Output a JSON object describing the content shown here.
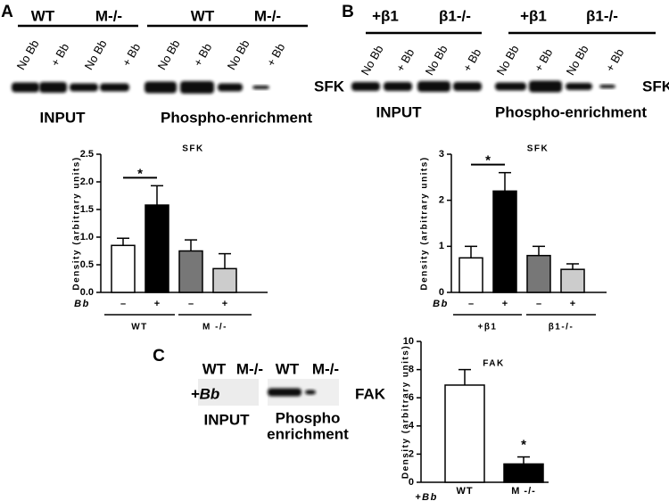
{
  "blots": [
    {
      "panel": "A",
      "headers": [
        "WT",
        "M-/-",
        "WT",
        "M-/-"
      ],
      "lanes": [
        "No Bb",
        "+ Bb",
        "No Bb",
        "+ Bb",
        "No Bb",
        "+ Bb",
        "No Bb",
        "+ Bb"
      ],
      "protein": "SFK",
      "sections": [
        "INPUT",
        "Phospho-enrichment"
      ]
    },
    {
      "panel": "B",
      "headers": [
        "+β1",
        "β1-/-",
        "+β1",
        "β1-/-"
      ],
      "lanes": [
        "No Bb",
        "+ Bb",
        "No Bb",
        "+ Bb",
        "No Bb",
        "+ Bb",
        "No Bb",
        "+ Bb"
      ],
      "protein": "SFK",
      "sections": [
        "INPUT",
        "Phospho-enrichment"
      ]
    },
    {
      "panel": "C",
      "headers": [
        "WT",
        "M-/-",
        "WT",
        "M-/-"
      ],
      "row_label": "+Bb",
      "protein": "FAK",
      "sections": [
        "INPUT",
        "Phospho",
        "enrichment"
      ]
    }
  ],
  "chart_data": [
    {
      "type": "bar",
      "title": "SFK",
      "y_label": "Density (arbitrary units)",
      "factor_label": "Bb",
      "categories": [
        "–",
        "+",
        "–",
        "+"
      ],
      "groups": [
        "WT",
        "M -/-"
      ],
      "values": [
        0.85,
        1.58,
        0.75,
        0.43
      ],
      "errors": [
        0.13,
        0.35,
        0.2,
        0.27
      ],
      "colors": [
        "#ffffff",
        "#000000",
        "#777777",
        "#cccccc"
      ],
      "annotation": "*",
      "ylim": [
        0,
        2.5
      ],
      "yticks": [
        {
          "value": 0,
          "label": "0.0"
        },
        0.5,
        {
          "value": 1,
          "label": "1.0"
        },
        1.5,
        {
          "value": 2,
          "label": "2.0"
        },
        2.5
      ]
    },
    {
      "type": "bar",
      "title": "SFK",
      "y_label": "Density (arbitrary units)",
      "factor_label": "Bb",
      "categories": [
        "–",
        "+",
        "–",
        "+"
      ],
      "groups": [
        "+β1",
        "β1-/-"
      ],
      "values": [
        0.75,
        2.2,
        0.8,
        0.5
      ],
      "errors": [
        0.25,
        0.4,
        0.2,
        0.12
      ],
      "colors": [
        "#ffffff",
        "#000000",
        "#777777",
        "#cccccc"
      ],
      "annotation": "*",
      "ylim": [
        0,
        3
      ],
      "yticks": [
        0,
        1,
        2,
        3
      ]
    },
    {
      "type": "bar",
      "title": "FAK",
      "y_label": "Density (arbitrary units)",
      "factor_label": "+Bb",
      "categories": [
        "WT",
        "M -/-"
      ],
      "values": [
        6.9,
        1.3
      ],
      "errors": [
        1.1,
        0.5
      ],
      "colors": [
        "#ffffff",
        "#000000"
      ],
      "annotation": "*",
      "ylim": [
        0,
        10
      ],
      "yticks": [
        0,
        2,
        4,
        6,
        8,
        10
      ]
    }
  ]
}
